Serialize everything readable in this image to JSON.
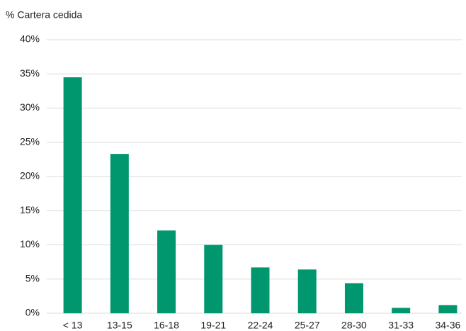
{
  "chart_data": {
    "type": "bar",
    "subtitle": "% Cartera cedida",
    "categories": [
      "< 13",
      "13-15",
      "16-18",
      "19-21",
      "22-24",
      "25-27",
      "28-30",
      "31-33",
      "34-36"
    ],
    "values": [
      34.5,
      23.3,
      12.1,
      10.0,
      6.7,
      6.4,
      4.4,
      0.8,
      1.2
    ],
    "color": "#00976f",
    "ylim": [
      0,
      40
    ],
    "yticks": [
      {
        "value": 0,
        "label": "0%"
      },
      {
        "value": 5,
        "label": "5%"
      },
      {
        "value": 10,
        "label": "10%"
      },
      {
        "value": 15,
        "label": "15%"
      },
      {
        "value": 20,
        "label": "20%"
      },
      {
        "value": 25,
        "label": "25%"
      },
      {
        "value": 30,
        "label": "30%"
      },
      {
        "value": 35,
        "label": "35%"
      },
      {
        "value": 40,
        "label": "40%"
      }
    ],
    "grid": true
  }
}
